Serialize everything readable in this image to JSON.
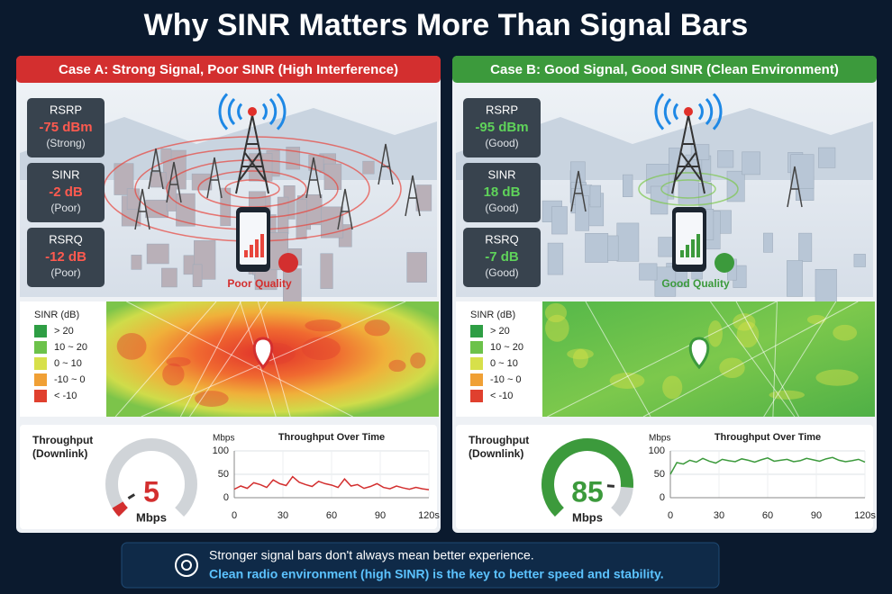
{
  "title": "Why SINR Matters More Than Signal Bars",
  "panels": [
    {
      "header": "Case A: Strong Signal, Poor SINR (High Interference)",
      "color": "#d32f2f",
      "accent": "#ff5a4f",
      "metrics": [
        {
          "name": "RSRP",
          "value": "-75 dBm",
          "rating": "(Strong)"
        },
        {
          "name": "SINR",
          "value": "-2 dB",
          "rating": "(Poor)"
        },
        {
          "name": "RSRQ",
          "value": "-12 dB",
          "rating": "(Poor)"
        }
      ],
      "quality": "Poor Quality",
      "legend_title": "SINR (dB)",
      "legend": [
        "> 20",
        "10 ~ 20",
        "0 ~ 10",
        "-10 ~ 0",
        "< -10"
      ],
      "legend_colors": [
        "#2e9e44",
        "#6cc24a",
        "#d7e04a",
        "#f0a035",
        "#e0402e"
      ],
      "throughput_label": [
        "Throughput",
        "(Downlink)"
      ],
      "gauge": {
        "value": 5,
        "unit": "Mbps"
      },
      "chart": {
        "type": "line",
        "title": "Throughput Over Time",
        "y_label": "Mbps",
        "color": "#d32f2f",
        "x": [
          0,
          4,
          8,
          12,
          16,
          20,
          24,
          28,
          32,
          36,
          40,
          44,
          48,
          52,
          56,
          60,
          64,
          68,
          72,
          76,
          80,
          84,
          88,
          92,
          96,
          100,
          104,
          108,
          112,
          116,
          120
        ],
        "values": [
          18,
          25,
          20,
          32,
          28,
          22,
          38,
          30,
          26,
          45,
          33,
          28,
          24,
          35,
          30,
          27,
          22,
          40,
          25,
          28,
          20,
          24,
          30,
          22,
          19,
          25,
          21,
          18,
          22,
          19,
          17
        ],
        "xlim": [
          0,
          120
        ],
        "xticks": [
          0,
          30,
          60,
          90,
          {
            "value": 120,
            "label": "120s"
          }
        ],
        "ylim": [
          0,
          100
        ],
        "yticks": [
          0,
          50,
          100
        ],
        "grid": true
      }
    },
    {
      "header": "Case B: Good Signal, Good SINR (Clean Environment)",
      "color": "#3c9a3c",
      "accent": "#5fd35a",
      "metrics": [
        {
          "name": "RSRP",
          "value": "-95 dBm",
          "rating": "(Good)"
        },
        {
          "name": "SINR",
          "value": "18 dB",
          "rating": "(Good)"
        },
        {
          "name": "RSRQ",
          "value": "-7 dB",
          "rating": "(Good)"
        }
      ],
      "quality": "Good Quality",
      "legend_title": "SINR (dB)",
      "legend": [
        "> 20",
        "10 ~ 20",
        "0 ~ 10",
        "-10 ~ 0",
        "< -10"
      ],
      "legend_colors": [
        "#2e9e44",
        "#6cc24a",
        "#d7e04a",
        "#f0a035",
        "#e0402e"
      ],
      "throughput_label": [
        "Throughput",
        "(Downlink)"
      ],
      "gauge": {
        "value": 85,
        "unit": "Mbps"
      },
      "chart": {
        "type": "line",
        "title": "Throughput Over Time",
        "y_label": "Mbps",
        "color": "#3c9a3c",
        "x": [
          0,
          4,
          8,
          12,
          16,
          20,
          24,
          28,
          32,
          36,
          40,
          44,
          48,
          52,
          56,
          60,
          64,
          68,
          72,
          76,
          80,
          84,
          88,
          92,
          96,
          100,
          104,
          108,
          112,
          116,
          120
        ],
        "values": [
          50,
          75,
          72,
          80,
          76,
          84,
          78,
          74,
          82,
          79,
          77,
          83,
          80,
          76,
          81,
          85,
          78,
          80,
          82,
          77,
          79,
          84,
          81,
          78,
          83,
          86,
          80,
          77,
          79,
          82,
          76
        ],
        "xlim": [
          0,
          120
        ],
        "xticks": [
          0,
          30,
          60,
          90,
          {
            "value": 120,
            "label": "120s"
          }
        ],
        "ylim": [
          0,
          100
        ],
        "yticks": [
          0,
          50,
          100
        ],
        "grid": true
      }
    }
  ],
  "footer": [
    "Stronger signal bars don't always mean better experience.",
    "Clean radio environment (high SINR) is the key to better speed and stability."
  ]
}
